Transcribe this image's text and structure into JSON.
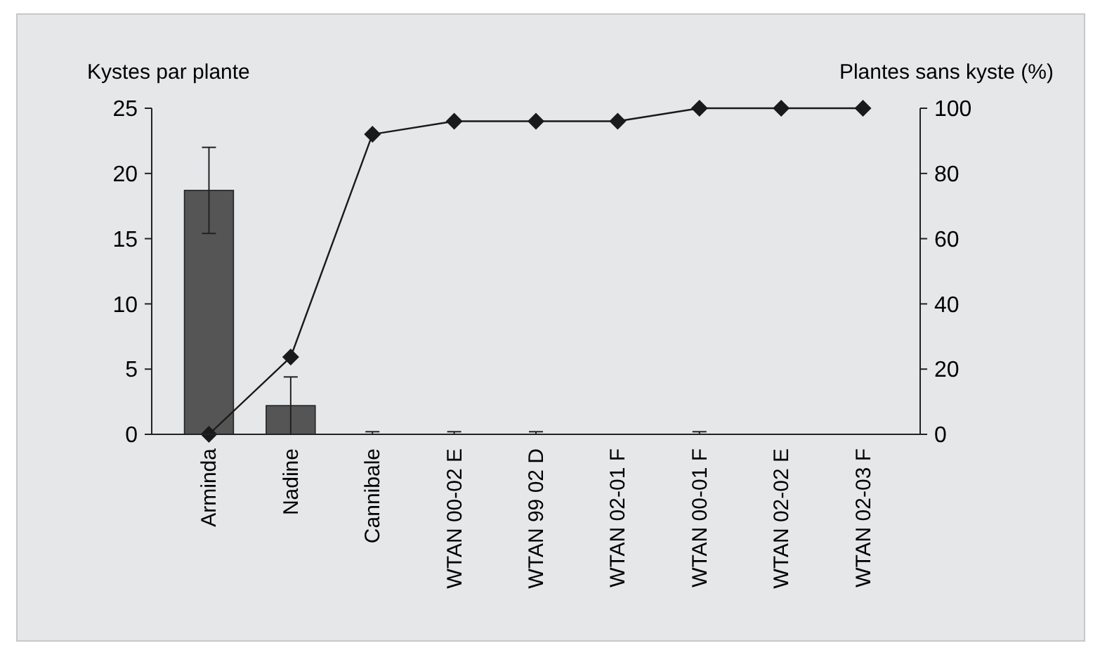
{
  "chart_data": {
    "type": "bar",
    "ylabel": "Kystes par plante",
    "y2label": "Plantes sans kyste (%)",
    "categories": [
      "Arminda",
      "Nadine",
      "Cannibale",
      "WTAN 00-02 E",
      "WTAN 99 02 D",
      "WTAN 02-01 F",
      "WTAN 00-01 F",
      "WTAN 02-02 E",
      "WTAN 02-03 F"
    ],
    "series": [
      {
        "color": "#555555",
        "values": [
          18.7,
          2.2,
          0,
          0,
          0,
          0,
          0,
          0,
          0
        ],
        "errors": [
          3.3,
          2.2,
          [
            0,
            0.2
          ],
          [
            0,
            0.2
          ],
          [
            0,
            0.2
          ],
          null,
          [
            0,
            0.2
          ],
          null,
          null
        ]
      },
      {
        "type": "line",
        "axis": "y2",
        "color": "#1a1a1a",
        "marker": "diamond",
        "line_style": "solid",
        "values": [
          0,
          23.7,
          92,
          96,
          96,
          96,
          100,
          100,
          100
        ]
      }
    ],
    "ylim": [
      0,
      25
    ],
    "yticks": [
      0,
      5,
      10,
      15,
      20,
      25
    ],
    "y2lim": [
      0,
      100
    ],
    "y2ticks": [
      0,
      20,
      40,
      60,
      80,
      100
    ],
    "grid": false
  }
}
